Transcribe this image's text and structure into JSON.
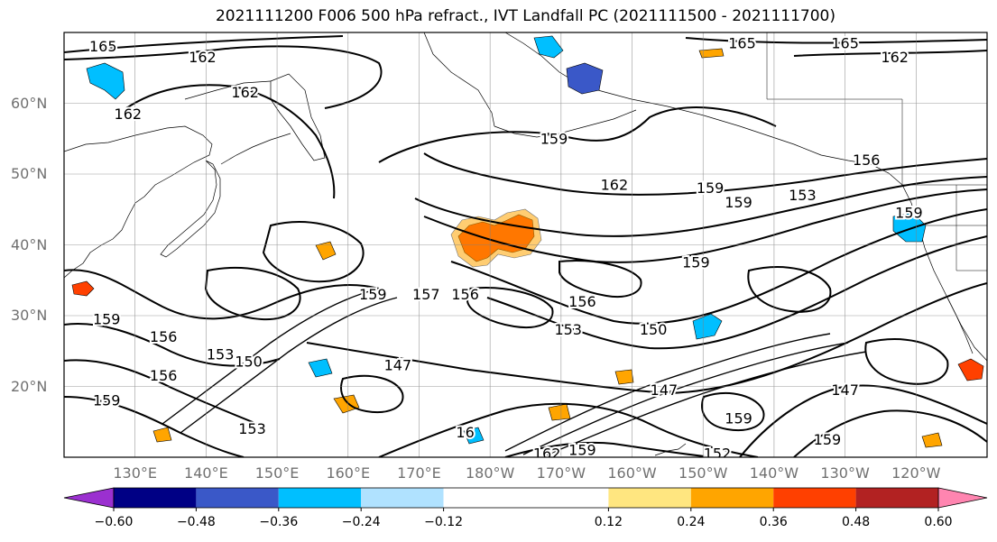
{
  "title": "2021111200 F006 500 hPa refract., IVT Landfall PC (2021111500 - 2021111700)",
  "lat_labels": [
    {
      "text": "60°N",
      "lat": 60
    },
    {
      "text": "50°N",
      "lat": 50
    },
    {
      "text": "40°N",
      "lat": 40
    },
    {
      "text": "30°N",
      "lat": 30
    },
    {
      "text": "20°N",
      "lat": 20
    }
  ],
  "lon_labels": [
    "130°E",
    "140°E",
    "150°E",
    "160°E",
    "170°E",
    "180°W",
    "170°W",
    "160°W",
    "150°W",
    "140°W",
    "130°W",
    "120°W"
  ],
  "map_extent": {
    "lon_west": 120,
    "lon_east": 250,
    "lat_south": 10,
    "lat_north": 70
  },
  "contour_labels": [
    {
      "text": "165",
      "lon": 125.5,
      "lat": 68
    },
    {
      "text": "162",
      "lon": 139.5,
      "lat": 66.5
    },
    {
      "text": "162",
      "lon": 145.5,
      "lat": 61.5
    },
    {
      "text": "162",
      "lon": 129,
      "lat": 58.5
    },
    {
      "text": "165",
      "lon": 215.5,
      "lat": 68.5
    },
    {
      "text": "165",
      "lon": 230,
      "lat": 68.5
    },
    {
      "text": "162",
      "lon": 237,
      "lat": 66.5
    },
    {
      "text": "159",
      "lon": 189,
      "lat": 55
    },
    {
      "text": "162",
      "lon": 197.5,
      "lat": 48.5
    },
    {
      "text": "159",
      "lon": 211,
      "lat": 48
    },
    {
      "text": "159",
      "lon": 215,
      "lat": 46
    },
    {
      "text": "153",
      "lon": 224,
      "lat": 47
    },
    {
      "text": "156",
      "lon": 233,
      "lat": 52
    },
    {
      "text": "159",
      "lon": 239,
      "lat": 44.5
    },
    {
      "text": "159",
      "lon": 209,
      "lat": 37.5
    },
    {
      "text": "159",
      "lon": 163.5,
      "lat": 33
    },
    {
      "text": "157",
      "lon": 171,
      "lat": 33
    },
    {
      "text": "156",
      "lon": 176.5,
      "lat": 33
    },
    {
      "text": "156",
      "lon": 193,
      "lat": 32
    },
    {
      "text": "153",
      "lon": 191,
      "lat": 28
    },
    {
      "text": "150",
      "lon": 203,
      "lat": 28
    },
    {
      "text": "147",
      "lon": 167,
      "lat": 23
    },
    {
      "text": "147",
      "lon": 204.5,
      "lat": 19.5
    },
    {
      "text": "147",
      "lon": 230,
      "lat": 19.5
    },
    {
      "text": "159",
      "lon": 126,
      "lat": 29.5
    },
    {
      "text": "156",
      "lon": 134,
      "lat": 27
    },
    {
      "text": "153",
      "lon": 142,
      "lat": 24.5
    },
    {
      "text": "150",
      "lon": 146,
      "lat": 23.5
    },
    {
      "text": "156",
      "lon": 134,
      "lat": 21.5
    },
    {
      "text": "159",
      "lon": 126,
      "lat": 18
    },
    {
      "text": "159",
      "lon": 215,
      "lat": 15.5
    },
    {
      "text": "159",
      "lon": 227.5,
      "lat": 12.5
    },
    {
      "text": "162",
      "lon": 188,
      "lat": 10.5
    },
    {
      "text": "159",
      "lon": 193,
      "lat": 11
    },
    {
      "text": "152",
      "lon": 212,
      "lat": 10.5
    },
    {
      "text": "153",
      "lon": 146.5,
      "lat": 14
    },
    {
      "text": "16",
      "lon": 176.5,
      "lat": 13.5
    }
  ],
  "colorbar": {
    "labels": [
      "−0.60",
      "−0.48",
      "−0.36",
      "−0.24",
      "−0.12",
      "0.12",
      "0.24",
      "0.36",
      "0.48",
      "0.60"
    ],
    "boundaries": [
      -0.6,
      -0.48,
      -0.36,
      -0.24,
      -0.12,
      0.12,
      0.24,
      0.36,
      0.48,
      0.6
    ],
    "under_color": "#9b30d0",
    "over_color": "#ff85b0",
    "colors": [
      "#000085",
      "#3a58c8",
      "#00bfff",
      "#b0e2ff",
      "#ffffff",
      "#ffe680",
      "#ffa500",
      "#ff4000",
      "#b22222"
    ]
  }
}
